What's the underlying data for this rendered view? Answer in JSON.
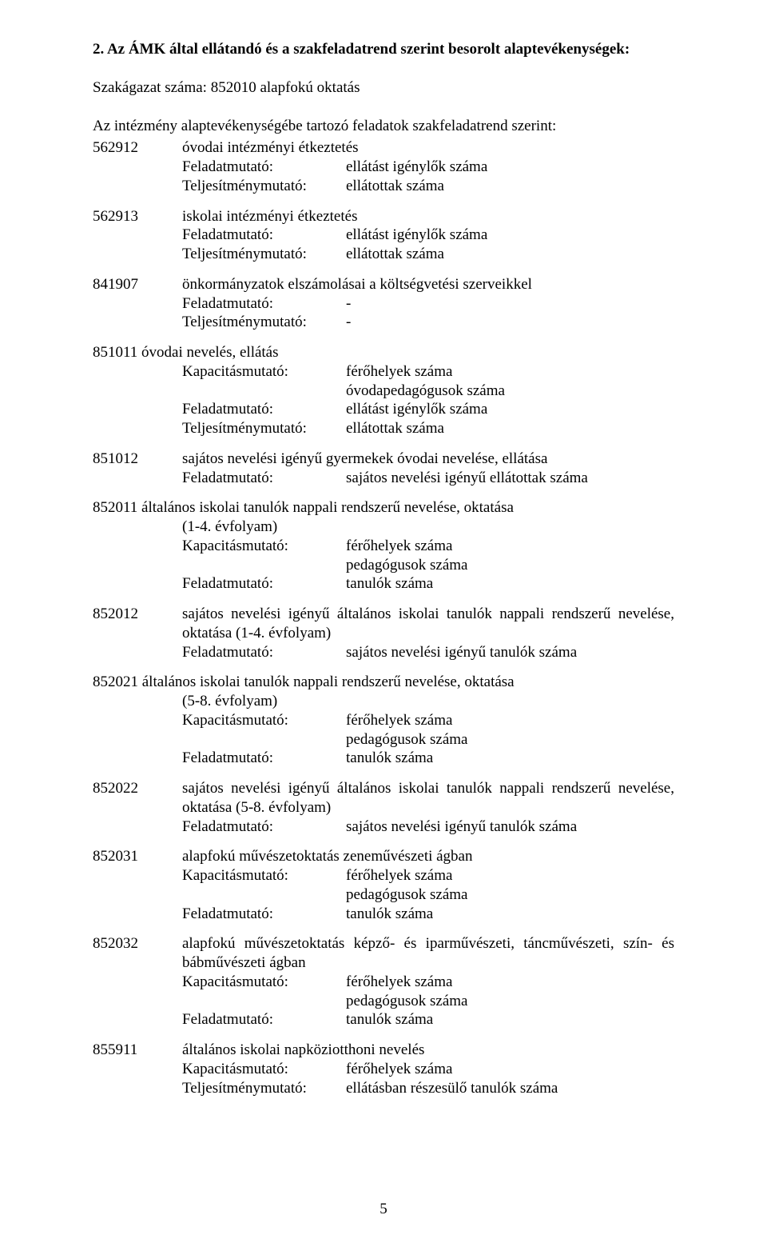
{
  "heading": "2. Az ÁMK által ellátandó és a szakfeladatrend szerint besorolt alaptevékenységek:",
  "subheading": "Szakágazat száma: 852010 alapfokú oktatás",
  "intro": "Az intézmény alaptevékenységébe tartozó feladatok szakfeladatrend szerint:",
  "labels": {
    "feladatmutato": "Feladatmutató:",
    "teljesitmenymutato": "Teljesítménymutató:",
    "kapacitasmutato": "Kapacitásmutató:"
  },
  "items": [
    {
      "code": "562912",
      "title": "óvodai intézményi étkeztetés",
      "rows": [
        {
          "label": "Feladatmutató:",
          "value": "ellátást igénylők száma"
        },
        {
          "label": "Teljesítménymutató:",
          "value": "ellátottak száma"
        }
      ]
    },
    {
      "code": "562913",
      "title": "iskolai intézményi étkeztetés",
      "rows": [
        {
          "label": "Feladatmutató:",
          "value": "ellátást igénylők száma"
        },
        {
          "label": "Teljesítménymutató:",
          "value": "ellátottak száma"
        }
      ]
    },
    {
      "code": "841907",
      "title": "önkormányzatok elszámolásai a költségvetési szerveikkel",
      "rows": [
        {
          "label": "Feladatmutató:",
          "value": "-"
        },
        {
          "label": "Teljesítménymutató:",
          "value": "-"
        }
      ]
    },
    {
      "code": "851011",
      "title": "óvodai nevelés, ellátás",
      "inline": true,
      "rows": [
        {
          "label": "Kapacitásmutató:",
          "value": "férőhelyek száma"
        },
        {
          "label": "",
          "value": "óvodapedagógusok száma"
        },
        {
          "label": "Feladatmutató:",
          "value": "ellátást igénylők száma"
        },
        {
          "label": "Teljesítménymutató:",
          "value": "ellátottak száma"
        }
      ]
    },
    {
      "code": "851012",
      "title": "sajátos nevelési igényű gyermekek óvodai nevelése, ellátása",
      "rows": [
        {
          "label": "Feladatmutató:",
          "value": "sajátos nevelési igényű ellátottak száma"
        }
      ]
    },
    {
      "code": "852011",
      "title": "általános iskolai tanulók nappali rendszerű nevelése, oktatása",
      "inline": true,
      "subtitle": "(1-4. évfolyam)",
      "rows": [
        {
          "label": "Kapacitásmutató:",
          "value": "férőhelyek száma"
        },
        {
          "label": "",
          "value": "pedagógusok száma"
        },
        {
          "label": "Feladatmutató:",
          "value": "tanulók száma"
        }
      ]
    },
    {
      "code": "852012",
      "title": "sajátos nevelési igényű általános iskolai tanulók nappali rendszerű nevelése, oktatása (1-4. évfolyam)",
      "justify": true,
      "rows": [
        {
          "label": "Feladatmutató:",
          "value": "sajátos nevelési igényű tanulók száma"
        }
      ]
    },
    {
      "code": "852021",
      "title": "általános iskolai tanulók nappali rendszerű nevelése, oktatása",
      "inline": true,
      "subtitle": "(5-8. évfolyam)",
      "rows": [
        {
          "label": "Kapacitásmutató:",
          "value": "férőhelyek száma"
        },
        {
          "label": "",
          "value": "pedagógusok száma"
        },
        {
          "label": "Feladatmutató:",
          "value": "tanulók száma"
        }
      ]
    },
    {
      "code": "852022",
      "title": "sajátos nevelési igényű általános iskolai tanulók nappali rendszerű nevelése, oktatása (5-8. évfolyam)",
      "justify": true,
      "rows": [
        {
          "label": "Feladatmutató:",
          "value": "sajátos nevelési igényű tanulók száma"
        }
      ]
    },
    {
      "code": "852031",
      "title": "alapfokú művészetoktatás zeneművészeti ágban",
      "rows": [
        {
          "label": "Kapacitásmutató:",
          "value": "férőhelyek száma"
        },
        {
          "label": "",
          "value": "pedagógusok száma"
        },
        {
          "label": "Feladatmutató:",
          "value": "tanulók száma"
        }
      ]
    },
    {
      "code": "852032",
      "title": "alapfokú művészetoktatás képző- és iparművészeti, táncművészeti, szín- és bábművészeti ágban",
      "justify": true,
      "rows": [
        {
          "label": "Kapacitásmutató:",
          "value": "férőhelyek száma"
        },
        {
          "label": "",
          "value": "pedagógusok száma"
        },
        {
          "label": "Feladatmutató:",
          "value": "tanulók száma"
        }
      ]
    },
    {
      "code": "855911",
      "title": "általános iskolai napköziotthoni nevelés",
      "rows": [
        {
          "label": "Kapacitásmutató:",
          "value": "férőhelyek száma"
        },
        {
          "label": "Teljesítménymutató:",
          "value": "ellátásban részesülő tanulók száma"
        }
      ]
    }
  ],
  "pageNumber": "5"
}
